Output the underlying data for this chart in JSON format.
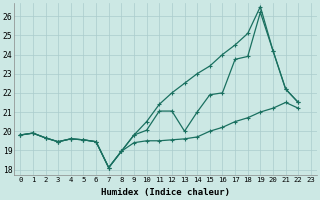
{
  "xlabel": "Humidex (Indice chaleur)",
  "bg_color": "#cce8e4",
  "grid_color": "#aacccc",
  "line_color": "#1a7060",
  "xlim": [
    -0.5,
    23.5
  ],
  "ylim": [
    17.7,
    26.7
  ],
  "yticks": [
    18,
    19,
    20,
    21,
    22,
    23,
    24,
    25,
    26
  ],
  "xticks": [
    0,
    1,
    2,
    3,
    4,
    5,
    6,
    7,
    8,
    9,
    10,
    11,
    12,
    13,
    14,
    15,
    16,
    17,
    18,
    19,
    20,
    21,
    22,
    23
  ],
  "series_measured_x": [
    0,
    1,
    2,
    3,
    4,
    5,
    6,
    7,
    8,
    9,
    10,
    11,
    12,
    13,
    14,
    15,
    16,
    17,
    18,
    19,
    20,
    21,
    22
  ],
  "series_measured_y": [
    19.8,
    19.9,
    19.65,
    19.45,
    19.6,
    19.55,
    19.45,
    18.1,
    18.95,
    19.8,
    20.05,
    21.05,
    21.05,
    20.0,
    21.0,
    21.9,
    22.0,
    23.75,
    23.9,
    26.2,
    24.2,
    22.2,
    21.5
  ],
  "series_min_x": [
    0,
    1,
    2,
    3,
    4,
    5,
    6,
    7,
    8,
    9,
    10,
    11,
    12,
    13,
    14,
    15,
    16,
    17,
    18,
    19,
    20,
    21,
    22
  ],
  "series_min_y": [
    19.8,
    19.9,
    19.65,
    19.45,
    19.6,
    19.55,
    19.45,
    18.1,
    18.95,
    19.4,
    19.5,
    19.5,
    19.55,
    19.6,
    19.7,
    20.0,
    20.2,
    20.5,
    20.7,
    21.0,
    21.2,
    21.5,
    21.2
  ],
  "series_max_x": [
    0,
    1,
    2,
    3,
    4,
    5,
    6,
    7,
    8,
    9,
    10,
    11,
    12,
    13,
    14,
    15,
    16,
    17,
    18,
    19,
    20,
    21,
    22
  ],
  "series_max_y": [
    19.8,
    19.9,
    19.65,
    19.45,
    19.6,
    19.55,
    19.45,
    18.1,
    18.95,
    19.8,
    20.5,
    21.4,
    22.0,
    22.5,
    23.0,
    23.4,
    24.0,
    24.5,
    25.1,
    26.5,
    24.2,
    22.2,
    21.5
  ]
}
